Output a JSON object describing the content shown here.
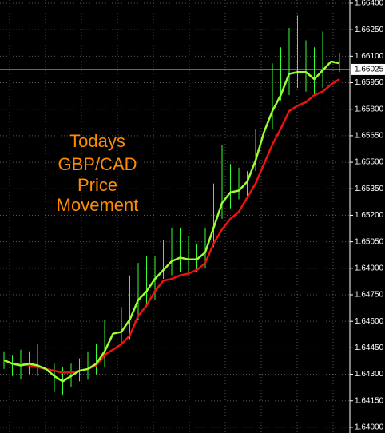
{
  "chart_data": {
    "type": "hl-bars",
    "annotation_lines": [
      "Todays",
      "GBP/CAD",
      "Price",
      "Movement"
    ],
    "annotation_color": "#ff8c00",
    "bar_color": "#33ff33",
    "high": [
      1.6443,
      1.6441,
      1.6444,
      1.6443,
      1.6447,
      1.6438,
      1.6436,
      1.6434,
      1.6436,
      1.6439,
      1.6443,
      1.6447,
      1.6461,
      1.647,
      1.6468,
      1.6486,
      1.6493,
      1.6497,
      1.6497,
      1.6506,
      1.6513,
      1.6513,
      1.6508,
      1.6504,
      1.6513,
      1.6538,
      1.656,
      1.6549,
      1.6547,
      1.6545,
      1.6569,
      1.6588,
      1.6606,
      1.6615,
      1.6626,
      1.6633,
      1.6619,
      1.6615,
      1.6624,
      1.6619,
      1.6612
    ],
    "low": [
      1.6433,
      1.6429,
      1.6427,
      1.643,
      1.6429,
      1.6426,
      1.642,
      1.6418,
      1.6423,
      1.6426,
      1.6427,
      1.643,
      1.6434,
      1.6443,
      1.6447,
      1.645,
      1.6461,
      1.6468,
      1.6472,
      1.6484,
      1.6486,
      1.6488,
      1.6486,
      1.6488,
      1.649,
      1.6502,
      1.6518,
      1.6524,
      1.6529,
      1.6531,
      1.6545,
      1.6556,
      1.6569,
      1.6585,
      1.6588,
      1.6592,
      1.659,
      1.6588,
      1.6592,
      1.6597,
      1.6601
    ],
    "ma_fast": {
      "color": "#99ff33",
      "values": [
        1.6438,
        1.6436,
        1.6435,
        1.6436,
        1.6435,
        1.6433,
        1.6429,
        1.6426,
        1.6429,
        1.6432,
        1.6433,
        1.6436,
        1.6443,
        1.6453,
        1.6454,
        1.6461,
        1.6472,
        1.6477,
        1.6484,
        1.6489,
        1.6494,
        1.6496,
        1.6495,
        1.6495,
        1.6499,
        1.6513,
        1.6527,
        1.6533,
        1.6534,
        1.6539,
        1.6551,
        1.6567,
        1.6579,
        1.6588,
        1.66,
        1.6601,
        1.6601,
        1.6597,
        1.6602,
        1.6607,
        1.6606
      ]
    },
    "ma_slow": {
      "color": "#ee1111",
      "values": [
        1.6438,
        1.6436,
        1.6436,
        1.6435,
        1.6434,
        1.6433,
        1.6432,
        1.6431,
        1.6431,
        1.6432,
        1.6433,
        1.6435,
        1.6441,
        1.6444,
        1.6447,
        1.6452,
        1.6463,
        1.6469,
        1.6477,
        1.6483,
        1.6484,
        1.6486,
        1.6487,
        1.6489,
        1.6493,
        1.6504,
        1.6512,
        1.6518,
        1.6522,
        1.653,
        1.6538,
        1.6549,
        1.656,
        1.6569,
        1.6579,
        1.6582,
        1.6584,
        1.6588,
        1.659,
        1.6594,
        1.6597
      ]
    },
    "ylim": [
      1.63968,
      1.66418
    ],
    "yticks": [
      {
        "value": 1.664,
        "label": "1.66400"
      },
      {
        "value": 1.6625,
        "label": "1.66250"
      },
      {
        "value": 1.661,
        "label": "1.66100"
      },
      {
        "value": 1.6595,
        "label": "1.65950"
      },
      {
        "value": 1.658,
        "label": "1.65800"
      },
      {
        "value": 1.6565,
        "label": "1.65650"
      },
      {
        "value": 1.655,
        "label": "1.65500"
      },
      {
        "value": 1.6535,
        "label": "1.65350"
      },
      {
        "value": 1.652,
        "label": "1.65200"
      },
      {
        "value": 1.6505,
        "label": "1.65050"
      },
      {
        "value": 1.649,
        "label": "1.64900"
      },
      {
        "value": 1.6475,
        "label": "1.64750"
      },
      {
        "value": 1.646,
        "label": "1.64600"
      },
      {
        "value": 1.6445,
        "label": "1.64450"
      },
      {
        "value": 1.643,
        "label": "1.64300"
      },
      {
        "value": 1.6415,
        "label": "1.64150"
      },
      {
        "value": 1.64,
        "label": "1.64000"
      }
    ],
    "current_price": {
      "value": 1.66025,
      "label": "1.66025"
    },
    "grid": true
  }
}
